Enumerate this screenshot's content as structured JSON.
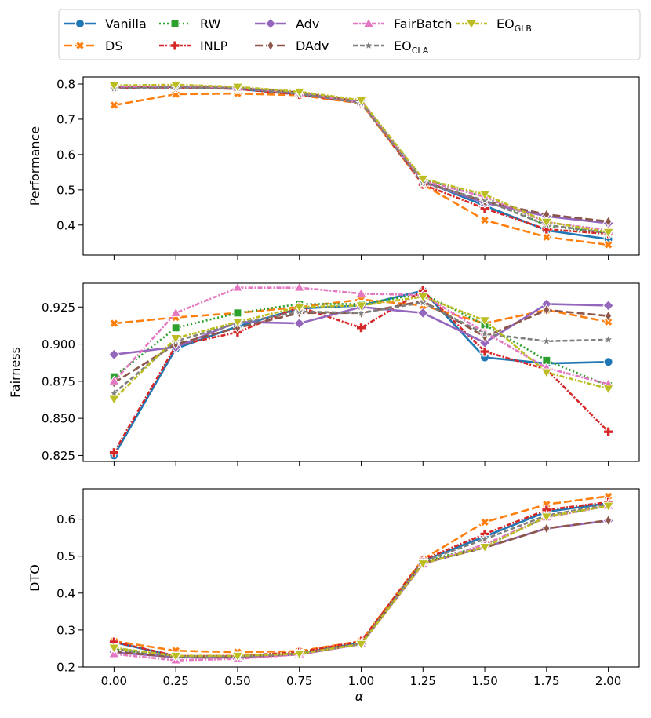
{
  "chart_data": {
    "type": "line",
    "x": [
      0.0,
      0.25,
      0.5,
      0.75,
      1.0,
      1.25,
      1.5,
      1.75,
      2.0
    ],
    "x_tick_labels": [
      "0.00",
      "0.25",
      "0.50",
      "0.75",
      "1.00",
      "1.25",
      "1.50",
      "1.75",
      "2.00"
    ],
    "xlabel": "α",
    "legend": {
      "placement": "top-center",
      "columns": 6,
      "entries": [
        {
          "name": "Vanilla",
          "base": "Vanilla",
          "sub": ""
        },
        {
          "name": "DS",
          "base": "DS",
          "sub": ""
        },
        {
          "name": "RW",
          "base": "RW",
          "sub": ""
        },
        {
          "name": "INLP",
          "base": "INLP",
          "sub": ""
        },
        {
          "name": "Adv",
          "base": "Adv",
          "sub": ""
        },
        {
          "name": "DAdv",
          "base": "DAdv",
          "sub": ""
        },
        {
          "name": "FairBatch",
          "base": "FairBatch",
          "sub": ""
        },
        {
          "name": "EO_CLA",
          "base": "EO",
          "sub": "CLA"
        },
        {
          "name": "EO_GLB",
          "base": "EO",
          "sub": "GLB"
        }
      ]
    },
    "styles": {
      "Vanilla": {
        "color": "#1f77b4",
        "marker": "circle",
        "dash": ""
      },
      "DS": {
        "color": "#ff7f0e",
        "marker": "x",
        "dash": "10,4"
      },
      "RW": {
        "color": "#2ca02c",
        "marker": "square",
        "dash": "2,3"
      },
      "INLP": {
        "color": "#d62728",
        "marker": "plus",
        "dash": "6,2,2,2"
      },
      "Adv": {
        "color": "#9467bd",
        "marker": "diamond",
        "dash": ""
      },
      "DAdv": {
        "color": "#8c564b",
        "marker": "thin-diamond",
        "dash": "10,4"
      },
      "FairBatch": {
        "color": "#e377c2",
        "marker": "triangle-up",
        "dash": "6,2,2,2"
      },
      "EO_CLA": {
        "color": "#7f7f7f",
        "marker": "star",
        "dash": "6,3"
      },
      "EO_GLB": {
        "color": "#bcbd22",
        "marker": "triangle-down",
        "dash": "6,2,2,2"
      }
    },
    "panels": [
      {
        "ylabel": "Performance",
        "ylim": [
          0.315,
          0.82
        ],
        "yticks": [
          0.4,
          0.5,
          0.6,
          0.7,
          0.8
        ],
        "ytick_labels": [
          "0.4",
          "0.5",
          "0.6",
          "0.7",
          "0.8"
        ],
        "series": [
          {
            "name": "Vanilla",
            "values": [
              0.79,
              0.792,
              0.786,
              0.771,
              0.748,
              0.525,
              0.455,
              0.385,
              0.36
            ]
          },
          {
            "name": "DS",
            "values": [
              0.74,
              0.771,
              0.773,
              0.768,
              0.745,
              0.515,
              0.414,
              0.366,
              0.344
            ]
          },
          {
            "name": "RW",
            "values": [
              0.791,
              0.793,
              0.788,
              0.774,
              0.75,
              0.53,
              0.48,
              0.398,
              0.377
            ]
          },
          {
            "name": "INLP",
            "values": [
              0.789,
              0.79,
              0.786,
              0.77,
              0.747,
              0.515,
              0.447,
              0.388,
              0.375
            ]
          },
          {
            "name": "Adv",
            "values": [
              0.791,
              0.792,
              0.789,
              0.775,
              0.75,
              0.523,
              0.463,
              0.425,
              0.405
            ]
          },
          {
            "name": "DAdv",
            "values": [
              0.791,
              0.792,
              0.789,
              0.776,
              0.75,
              0.523,
              0.467,
              0.43,
              0.41
            ]
          },
          {
            "name": "FairBatch",
            "values": [
              0.793,
              0.795,
              0.79,
              0.774,
              0.748,
              0.526,
              0.48,
              0.408,
              0.385
            ]
          },
          {
            "name": "EO_CLA",
            "values": [
              0.787,
              0.79,
              0.788,
              0.772,
              0.746,
              0.52,
              0.47,
              0.4,
              0.378
            ]
          },
          {
            "name": "EO_GLB",
            "values": [
              0.796,
              0.798,
              0.792,
              0.778,
              0.754,
              0.531,
              0.487,
              0.409,
              0.38
            ]
          }
        ]
      },
      {
        "ylabel": "Fairness",
        "ylim": [
          0.821,
          0.941
        ],
        "yticks": [
          0.825,
          0.85,
          0.875,
          0.9,
          0.925
        ],
        "ytick_labels": [
          "0.825",
          "0.850",
          "0.875",
          "0.900",
          "0.925"
        ],
        "series": [
          {
            "name": "Vanilla",
            "values": [
              0.825,
              0.897,
              0.912,
              0.924,
              0.926,
              0.936,
              0.891,
              0.887,
              0.888
            ]
          },
          {
            "name": "DS",
            "values": [
              0.914,
              0.918,
              0.921,
              0.925,
              0.93,
              0.926,
              0.914,
              0.923,
              0.915
            ]
          },
          {
            "name": "RW",
            "values": [
              0.878,
              0.911,
              0.921,
              0.927,
              0.927,
              0.934,
              0.913,
              0.889,
              0.872
            ]
          },
          {
            "name": "INLP",
            "values": [
              0.827,
              0.899,
              0.908,
              0.925,
              0.911,
              0.936,
              0.895,
              0.883,
              0.841
            ]
          },
          {
            "name": "Adv",
            "values": [
              0.893,
              0.898,
              0.915,
              0.914,
              0.925,
              0.921,
              0.901,
              0.927,
              0.926
            ]
          },
          {
            "name": "DAdv",
            "values": [
              0.874,
              0.9,
              0.911,
              0.921,
              0.921,
              0.929,
              0.905,
              0.923,
              0.919
            ]
          },
          {
            "name": "FairBatch",
            "values": [
              0.875,
              0.921,
              0.938,
              0.938,
              0.934,
              0.933,
              0.908,
              0.884,
              0.873
            ]
          },
          {
            "name": "EO_CLA",
            "values": [
              0.867,
              0.902,
              0.914,
              0.922,
              0.921,
              0.928,
              0.907,
              0.902,
              0.903
            ]
          },
          {
            "name": "EO_GLB",
            "values": [
              0.863,
              0.904,
              0.915,
              0.925,
              0.926,
              0.932,
              0.916,
              0.881,
              0.87
            ]
          }
        ]
      },
      {
        "ylabel": "DTO",
        "ylim": [
          0.2,
          0.682
        ],
        "yticks": [
          0.2,
          0.3,
          0.4,
          0.5,
          0.6
        ],
        "ytick_labels": [
          "0.2",
          "0.3",
          "0.4",
          "0.5",
          "0.6"
        ],
        "series": [
          {
            "name": "Vanilla",
            "values": [
              0.267,
              0.229,
              0.228,
              0.236,
              0.266,
              0.487,
              0.553,
              0.62,
              0.643
            ]
          },
          {
            "name": "DS",
            "values": [
              0.27,
              0.244,
              0.24,
              0.243,
              0.27,
              0.492,
              0.592,
              0.64,
              0.662
            ]
          },
          {
            "name": "RW",
            "values": [
              0.248,
              0.227,
              0.227,
              0.237,
              0.262,
              0.485,
              0.528,
              0.605,
              0.636
            ]
          },
          {
            "name": "INLP",
            "values": [
              0.268,
              0.23,
              0.23,
              0.24,
              0.27,
              0.49,
              0.56,
              0.625,
              0.646
            ]
          },
          {
            "name": "Adv",
            "values": [
              0.24,
              0.226,
              0.225,
              0.234,
              0.262,
              0.48,
              0.524,
              0.575,
              0.596
            ]
          },
          {
            "name": "DAdv",
            "values": [
              0.242,
              0.226,
              0.225,
              0.235,
              0.263,
              0.482,
              0.523,
              0.575,
              0.597
            ]
          },
          {
            "name": "FairBatch",
            "values": [
              0.235,
              0.218,
              0.222,
              0.234,
              0.262,
              0.478,
              0.532,
              0.605,
              0.636
            ]
          },
          {
            "name": "EO_CLA",
            "values": [
              0.25,
              0.228,
              0.228,
              0.236,
              0.263,
              0.486,
              0.546,
              0.61,
              0.64
            ]
          },
          {
            "name": "EO_GLB",
            "values": [
              0.252,
              0.23,
              0.23,
              0.236,
              0.262,
              0.48,
              0.525,
              0.607,
              0.636
            ]
          }
        ]
      }
    ]
  }
}
